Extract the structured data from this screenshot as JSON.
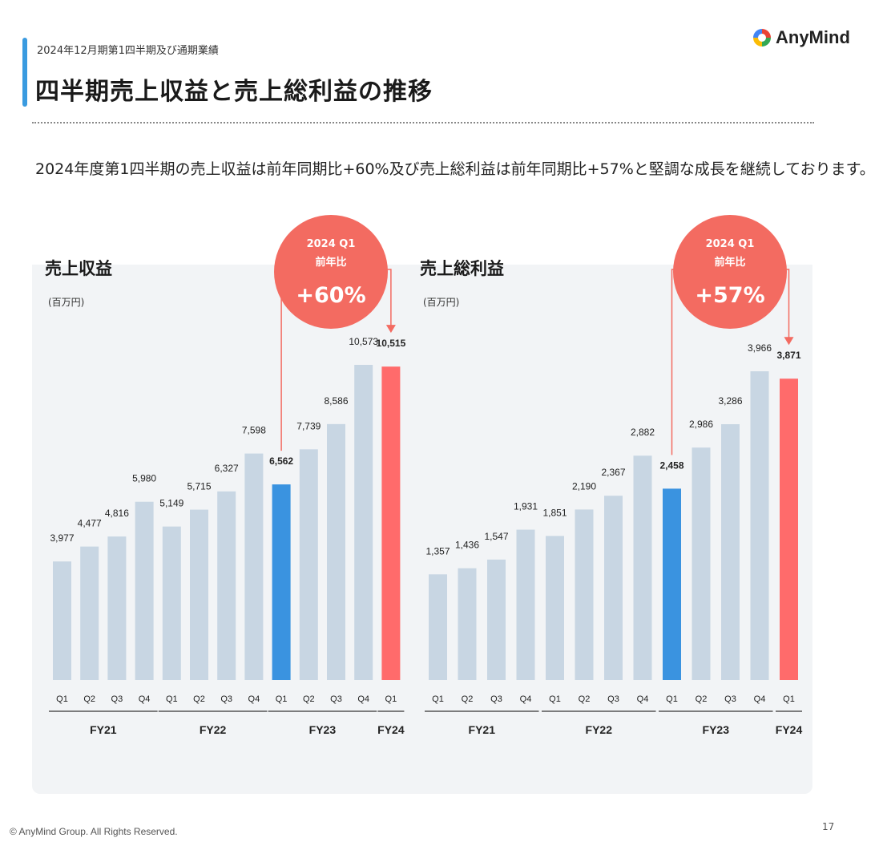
{
  "header": {
    "subtitle": "2024年12月期第1四半期及び通期業績",
    "title": "四半期売上収益と売上総利益の推移",
    "logo_text": "AnyMind"
  },
  "lead_text": "2024年度第1四半期の売上収益は前年同期比+60%及び売上総利益は前年同期比+57%と堅調な成長を継続しております。",
  "footer": {
    "copyright": "© AnyMind Group. All Rights Reserved.",
    "page_number": "17"
  },
  "colors": {
    "normal_bar": "#c8d6e3",
    "current_bar": "#3a93e0",
    "highlight_bar": "#ff6b6b",
    "badge": "#f36b61",
    "accent": "#3a9be0"
  },
  "chart_data": [
    {
      "type": "bar",
      "title": "売上収益",
      "unit": "(百万円)",
      "categories": [
        "Q1",
        "Q2",
        "Q3",
        "Q4",
        "Q1",
        "Q2",
        "Q3",
        "Q4",
        "Q1",
        "Q2",
        "Q3",
        "Q4",
        "Q1"
      ],
      "groups": [
        {
          "label": "FY21",
          "count": 4
        },
        {
          "label": "FY22",
          "count": 4
        },
        {
          "label": "FY23",
          "count": 4
        },
        {
          "label": "FY24",
          "count": 1
        }
      ],
      "values": [
        3977,
        4477,
        4816,
        5980,
        5149,
        5715,
        6327,
        7598,
        6562,
        7739,
        8586,
        10573,
        10515
      ],
      "value_labels": [
        "3,977",
        "4,477",
        "4,816",
        "5,980",
        "5,149",
        "5,715",
        "6,327",
        "7,598",
        "6,562",
        "7,739",
        "8,586",
        "10,573",
        "10,515"
      ],
      "highlight": {
        "compare_index": 8,
        "current_index": 12
      },
      "badge": {
        "line1": "2024 Q1",
        "line2": "前年比",
        "line3": "+60%"
      }
    },
    {
      "type": "bar",
      "title": "売上総利益",
      "unit": "(百万円)",
      "categories": [
        "Q1",
        "Q2",
        "Q3",
        "Q4",
        "Q1",
        "Q2",
        "Q3",
        "Q4",
        "Q1",
        "Q2",
        "Q3",
        "Q4",
        "Q1"
      ],
      "groups": [
        {
          "label": "FY21",
          "count": 4
        },
        {
          "label": "FY22",
          "count": 4
        },
        {
          "label": "FY23",
          "count": 4
        },
        {
          "label": "FY24",
          "count": 1
        }
      ],
      "values": [
        1357,
        1436,
        1547,
        1931,
        1851,
        2190,
        2367,
        2882,
        2458,
        2986,
        3286,
        3966,
        3871
      ],
      "value_labels": [
        "1,357",
        "1,436",
        "1,547",
        "1,931",
        "1,851",
        "2,190",
        "2,367",
        "2,882",
        "2,458",
        "2,986",
        "3,286",
        "3,966",
        "3,871"
      ],
      "highlight": {
        "compare_index": 8,
        "current_index": 12
      },
      "badge": {
        "line1": "2024 Q1",
        "line2": "前年比",
        "line3": "+57%"
      }
    }
  ]
}
